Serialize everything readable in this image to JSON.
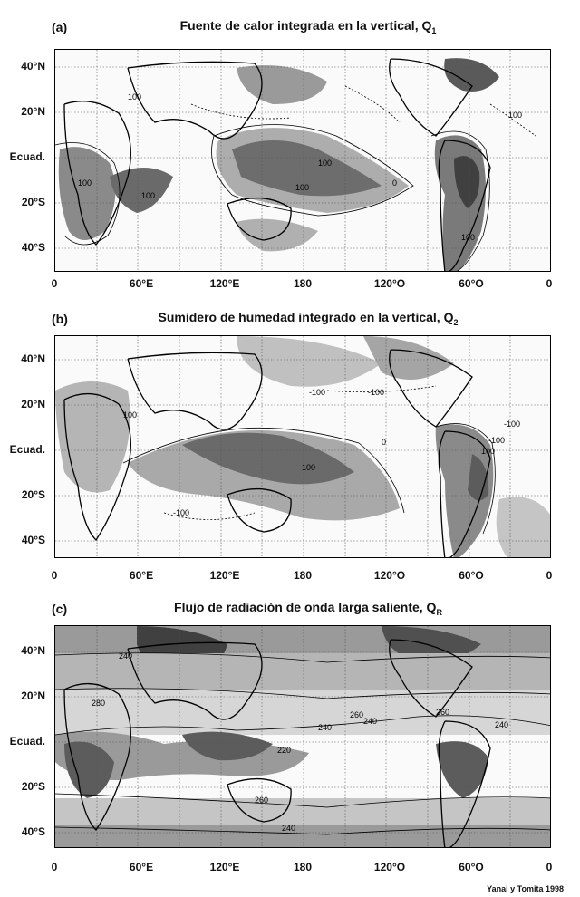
{
  "panels": [
    {
      "letter": "(a)",
      "title": "Fuente de calor integrada en la vertical, Q",
      "title_sub": "1",
      "contours": [
        "100",
        "100",
        "100",
        "100",
        "100",
        "100",
        "0",
        "100"
      ]
    },
    {
      "letter": "(b)",
      "title": "Sumidero de humedad integrado en la vertical, Q",
      "title_sub": "2",
      "contours": [
        "-100",
        "-100",
        "100",
        "0",
        "100",
        "-100",
        "-100",
        "100",
        "-100"
      ]
    },
    {
      "letter": "(c)",
      "title": "Flujo de radiación de onda larga saliente, Q",
      "title_sub": "R",
      "contours": [
        "240",
        "260",
        "280",
        "260",
        "240",
        "240",
        "240",
        "220",
        "260",
        "240"
      ]
    }
  ],
  "lat_labels": [
    "40°N",
    "20°N",
    "Ecuad.",
    "20°S",
    "40°S"
  ],
  "lon_labels": [
    "0",
    "60°E",
    "120°E",
    "180",
    "120°O",
    "60°O",
    "0"
  ],
  "credit": "Yanai y Tomita 1998",
  "colors": {
    "shade_dark": "#4a4a4a",
    "shade_mid": "#8a8a8a",
    "shade_light": "#c8c8c8",
    "line": "#000000"
  }
}
